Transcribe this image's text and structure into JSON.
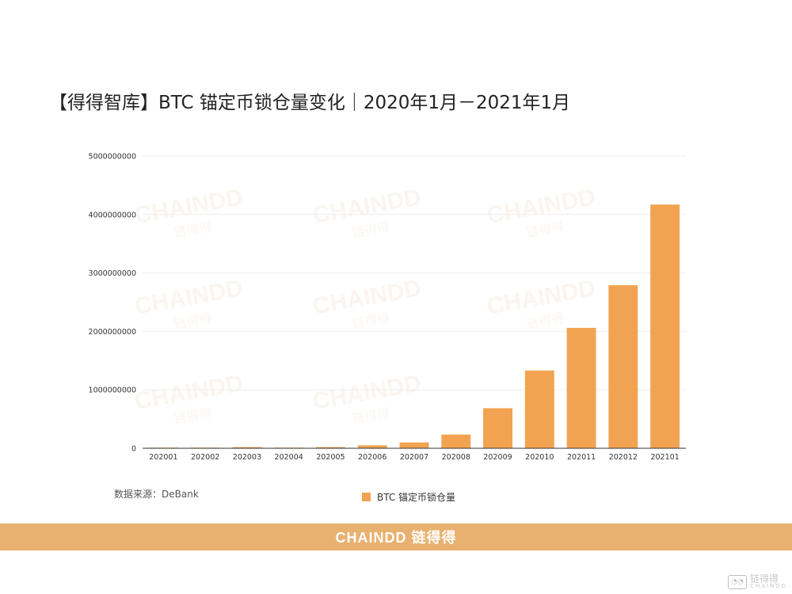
{
  "title": "【得得智库】BTC 锚定币锁仓量变化｜2020年1月－2021年1月",
  "source": "数据来源：DeBank",
  "watermark": {
    "text_en": "CHAINDD",
    "text_cn": "链得得"
  },
  "footer": {
    "logo": "CHAINDD 链得得"
  },
  "corner_mark": {
    "icon": "wechat-icon",
    "text_cn": "链得得",
    "text_en": "CHAINDD"
  },
  "colors": {
    "bar": "#F2A351",
    "footer": "#E9B16F",
    "grid": "#eeeeee",
    "axis": "#333333"
  },
  "chart_data": {
    "type": "bar",
    "categories": [
      "202001",
      "202002",
      "202003",
      "202004",
      "202005",
      "202006",
      "202007",
      "202008",
      "202009",
      "202010",
      "202011",
      "202012",
      "202101"
    ],
    "series": [
      {
        "name": "BTC 锚定币锁仓量",
        "values": [
          5000000,
          6000000,
          20000000,
          10000000,
          20000000,
          50000000,
          100000000,
          235000000,
          685000000,
          1330000000,
          2060000000,
          2790000000,
          4170000000
        ]
      }
    ],
    "yticks": [
      "0",
      "1000000000",
      "2000000000",
      "3000000000",
      "4000000000",
      "5000000000"
    ],
    "ylim": [
      0,
      5000000000
    ],
    "grid": true,
    "legend_position": "bottom"
  }
}
